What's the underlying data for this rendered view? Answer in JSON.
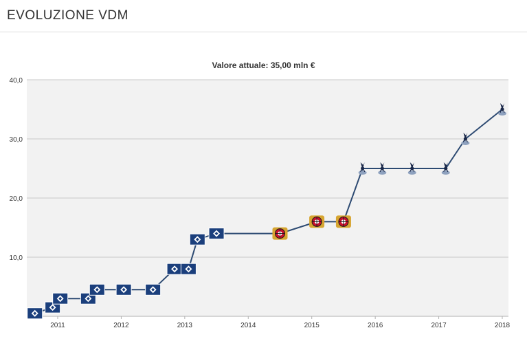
{
  "header": {
    "title": "EVOLUZIONE VDM"
  },
  "subtitle": "Valore attuale: 35,00 mln €",
  "colors": {
    "line": "#2d4a72",
    "grid": "#c8c8c8",
    "plot_bg": "#f2f2f2",
    "club_hamburg": "#1b3f7c",
    "club_leverkusen": "#d7a531",
    "club_tottenham": "#1a2849"
  },
  "clubs": {
    "hamburg": "hamburg-badge-icon",
    "leverkusen": "leverkusen-badge-icon",
    "tottenham": "tottenham-badge-icon"
  },
  "chart_data": {
    "type": "line",
    "title": "Valore attuale: 35,00 mln €",
    "xlabel": "",
    "ylabel": "",
    "ylim": [
      0,
      40
    ],
    "xlim": [
      2010.6,
      2018.0
    ],
    "grid": true,
    "y_ticks": [
      "10,0",
      "20,0",
      "30,0",
      "40,0"
    ],
    "y_tick_values": [
      10,
      20,
      30,
      40
    ],
    "x_ticks": [
      "2011",
      "2012",
      "2013",
      "2014",
      "2015",
      "2016",
      "2017",
      "2018"
    ],
    "x_tick_values": [
      2011,
      2012,
      2013,
      2014,
      2015,
      2016,
      2017,
      2018
    ],
    "series": [
      {
        "points": [
          {
            "x": 2010.64,
            "y": 0.5,
            "club": "hamburg"
          },
          {
            "x": 2010.92,
            "y": 1.5,
            "club": "hamburg"
          },
          {
            "x": 2011.04,
            "y": 3.0,
            "club": "hamburg"
          },
          {
            "x": 2011.48,
            "y": 3.0,
            "club": "hamburg"
          },
          {
            "x": 2011.62,
            "y": 4.5,
            "club": "hamburg"
          },
          {
            "x": 2012.04,
            "y": 4.5,
            "club": "hamburg"
          },
          {
            "x": 2012.5,
            "y": 4.5,
            "club": "hamburg"
          },
          {
            "x": 2012.84,
            "y": 8.0,
            "club": "hamburg"
          },
          {
            "x": 2013.06,
            "y": 8.0,
            "club": "hamburg"
          },
          {
            "x": 2013.2,
            "y": 13.0,
            "club": "hamburg"
          },
          {
            "x": 2013.5,
            "y": 14.0,
            "club": "hamburg"
          },
          {
            "x": 2014.5,
            "y": 14.0,
            "club": "leverkusen"
          },
          {
            "x": 2015.08,
            "y": 16.0,
            "club": "leverkusen"
          },
          {
            "x": 2015.5,
            "y": 16.0,
            "club": "leverkusen"
          },
          {
            "x": 2015.8,
            "y": 25.0,
            "club": "tottenham"
          },
          {
            "x": 2016.11,
            "y": 25.0,
            "club": "tottenham"
          },
          {
            "x": 2016.58,
            "y": 25.0,
            "club": "tottenham"
          },
          {
            "x": 2017.11,
            "y": 25.0,
            "club": "tottenham"
          },
          {
            "x": 2017.42,
            "y": 30.0,
            "club": "tottenham"
          },
          {
            "x": 2018.0,
            "y": 35.0,
            "club": "tottenham"
          }
        ]
      }
    ]
  }
}
